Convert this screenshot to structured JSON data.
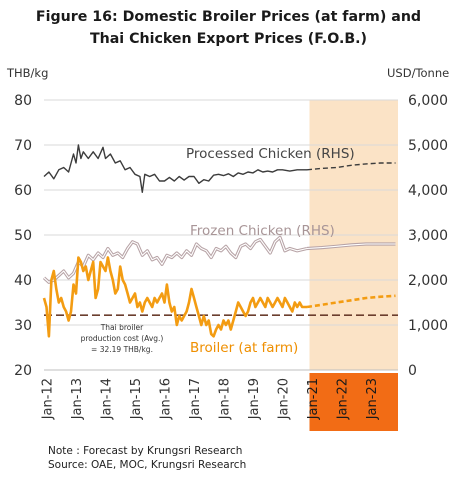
{
  "chart_data": {
    "type": "line",
    "title_line1": "Figure 16: Domestic Broiler Prices (at farm) and",
    "title_line2": "Thai Chicken Export Prices (F.O.B.)",
    "left_unit": "THB/kg",
    "right_unit": "USD/Tonne",
    "left_ylim": [
      20,
      80
    ],
    "left_ticks": [
      "80",
      "70",
      "60",
      "50",
      "40",
      "30",
      "20"
    ],
    "right_ylim": [
      0,
      6000
    ],
    "right_ticks": [
      "6,000",
      "5,000",
      "4,000",
      "3,000",
      "2,000",
      "1,000",
      "0"
    ],
    "x_labels": [
      "Jan-12",
      "Jan-13",
      "Jan-14",
      "Jan-15",
      "Jan-16",
      "Jan-17",
      "Jan-18",
      "Jan-19",
      "Jan-20",
      "Jan-21",
      "Jan-22",
      "Jan-23"
    ],
    "forecast_labels_highlighted": [
      "Jan-21",
      "Jan-22",
      "Jan-23"
    ],
    "forecast_start": "Jan-21",
    "grid": true,
    "colors": {
      "processed": "#3c3c3c",
      "frozen": "#b7a3a6",
      "broiler": "#f39c12",
      "cost_line": "#6b3e2e",
      "forecast_band": "#fbe3c6",
      "forecast_axis": "#f26c15",
      "processed_label": "#444444",
      "frozen_label": "#a89597",
      "broiler_label": "#ef8f00"
    },
    "annotations": {
      "processed": "Processed Chicken (RHS)",
      "frozen": "Frozen Chicken (RHS)",
      "broiler": "Broiler (at farm)",
      "cost_line1": "Thai broiler",
      "cost_line2": "production cost (Avg.)",
      "cost_line3": "= 32.19 THB/kg."
    },
    "production_cost_thb_kg": 32.19,
    "series": [
      {
        "key": "processed",
        "axis": "right",
        "style": "solid",
        "points": [
          [
            "2012-01",
            4300
          ],
          [
            "2012-03",
            4400
          ],
          [
            "2012-05",
            4250
          ],
          [
            "2012-07",
            4450
          ],
          [
            "2012-09",
            4500
          ],
          [
            "2012-11",
            4400
          ],
          [
            "2013-01",
            4800
          ],
          [
            "2013-02",
            4600
          ],
          [
            "2013-03",
            5000
          ],
          [
            "2013-04",
            4700
          ],
          [
            "2013-05",
            4850
          ],
          [
            "2013-07",
            4700
          ],
          [
            "2013-09",
            4850
          ],
          [
            "2013-11",
            4700
          ],
          [
            "2014-01",
            4950
          ],
          [
            "2014-02",
            4700
          ],
          [
            "2014-04",
            4800
          ],
          [
            "2014-06",
            4600
          ],
          [
            "2014-08",
            4650
          ],
          [
            "2014-10",
            4450
          ],
          [
            "2014-12",
            4500
          ],
          [
            "2015-02",
            4350
          ],
          [
            "2015-04",
            4300
          ],
          [
            "2015-05",
            3950
          ],
          [
            "2015-06",
            4350
          ],
          [
            "2015-08",
            4300
          ],
          [
            "2015-10",
            4350
          ],
          [
            "2015-12",
            4200
          ],
          [
            "2016-02",
            4200
          ],
          [
            "2016-04",
            4280
          ],
          [
            "2016-06",
            4200
          ],
          [
            "2016-08",
            4300
          ],
          [
            "2016-10",
            4220
          ],
          [
            "2016-12",
            4300
          ],
          [
            "2017-02",
            4300
          ],
          [
            "2017-04",
            4150
          ],
          [
            "2017-06",
            4230
          ],
          [
            "2017-08",
            4200
          ],
          [
            "2017-10",
            4330
          ],
          [
            "2017-12",
            4350
          ],
          [
            "2018-02",
            4320
          ],
          [
            "2018-04",
            4360
          ],
          [
            "2018-06",
            4300
          ],
          [
            "2018-08",
            4380
          ],
          [
            "2018-10",
            4350
          ],
          [
            "2018-12",
            4400
          ],
          [
            "2019-02",
            4380
          ],
          [
            "2019-04",
            4450
          ],
          [
            "2019-06",
            4400
          ],
          [
            "2019-08",
            4420
          ],
          [
            "2019-10",
            4400
          ],
          [
            "2019-12",
            4450
          ],
          [
            "2020-02",
            4450
          ],
          [
            "2020-05",
            4420
          ],
          [
            "2020-08",
            4450
          ],
          [
            "2020-12",
            4450
          ]
        ]
      },
      {
        "key": "processed_forecast",
        "axis": "right",
        "style": "dashed",
        "points": [
          [
            "2020-12",
            4450
          ],
          [
            "2021-06",
            4480
          ],
          [
            "2021-12",
            4500
          ],
          [
            "2022-06",
            4550
          ],
          [
            "2022-12",
            4580
          ],
          [
            "2023-06",
            4600
          ],
          [
            "2023-12",
            4600
          ]
        ]
      },
      {
        "key": "frozen",
        "axis": "right",
        "style": "double",
        "points": [
          [
            "2012-01",
            2050
          ],
          [
            "2012-03",
            1950
          ],
          [
            "2012-05",
            2000
          ],
          [
            "2012-07",
            2100
          ],
          [
            "2012-09",
            2200
          ],
          [
            "2012-11",
            2050
          ],
          [
            "2013-01",
            2150
          ],
          [
            "2013-03",
            2400
          ],
          [
            "2013-05",
            2300
          ],
          [
            "2013-07",
            2550
          ],
          [
            "2013-09",
            2450
          ],
          [
            "2013-11",
            2600
          ],
          [
            "2014-01",
            2500
          ],
          [
            "2014-03",
            2700
          ],
          [
            "2014-05",
            2550
          ],
          [
            "2014-07",
            2600
          ],
          [
            "2014-09",
            2500
          ],
          [
            "2014-11",
            2700
          ],
          [
            "2015-01",
            2850
          ],
          [
            "2015-03",
            2800
          ],
          [
            "2015-05",
            2550
          ],
          [
            "2015-07",
            2650
          ],
          [
            "2015-09",
            2450
          ],
          [
            "2015-11",
            2500
          ],
          [
            "2016-01",
            2350
          ],
          [
            "2016-03",
            2550
          ],
          [
            "2016-05",
            2500
          ],
          [
            "2016-07",
            2600
          ],
          [
            "2016-09",
            2500
          ],
          [
            "2016-11",
            2650
          ],
          [
            "2017-01",
            2550
          ],
          [
            "2017-03",
            2800
          ],
          [
            "2017-05",
            2700
          ],
          [
            "2017-07",
            2650
          ],
          [
            "2017-09",
            2500
          ],
          [
            "2017-11",
            2700
          ],
          [
            "2018-01",
            2650
          ],
          [
            "2018-03",
            2750
          ],
          [
            "2018-05",
            2600
          ],
          [
            "2018-07",
            2500
          ],
          [
            "2018-09",
            2750
          ],
          [
            "2018-11",
            2800
          ],
          [
            "2019-01",
            2700
          ],
          [
            "2019-03",
            2850
          ],
          [
            "2019-05",
            2900
          ],
          [
            "2019-07",
            2750
          ],
          [
            "2019-09",
            2600
          ],
          [
            "2019-11",
            2850
          ],
          [
            "2020-01",
            2950
          ],
          [
            "2020-03",
            2650
          ],
          [
            "2020-05",
            2700
          ],
          [
            "2020-08",
            2650
          ],
          [
            "2020-12",
            2700
          ]
        ]
      },
      {
        "key": "frozen_forecast",
        "axis": "right",
        "style": "double",
        "points": [
          [
            "2020-12",
            2700
          ],
          [
            "2021-06",
            2720
          ],
          [
            "2021-12",
            2750
          ],
          [
            "2022-06",
            2780
          ],
          [
            "2022-12",
            2800
          ],
          [
            "2023-06",
            2800
          ],
          [
            "2023-12",
            2800
          ]
        ]
      },
      {
        "key": "broiler",
        "axis": "left",
        "style": "solid",
        "points": [
          [
            "2012-01",
            36
          ],
          [
            "2012-02",
            34
          ],
          [
            "2012-03",
            27.5
          ],
          [
            "2012-04",
            40
          ],
          [
            "2012-05",
            42
          ],
          [
            "2012-06",
            38
          ],
          [
            "2012-07",
            35
          ],
          [
            "2012-08",
            36
          ],
          [
            "2012-09",
            34
          ],
          [
            "2012-10",
            33
          ],
          [
            "2012-11",
            31
          ],
          [
            "2012-12",
            33
          ],
          [
            "2013-01",
            39
          ],
          [
            "2013-02",
            37
          ],
          [
            "2013-03",
            45
          ],
          [
            "2013-04",
            44
          ],
          [
            "2013-05",
            42
          ],
          [
            "2013-06",
            43
          ],
          [
            "2013-07",
            40
          ],
          [
            "2013-08",
            42
          ],
          [
            "2013-09",
            44
          ],
          [
            "2013-10",
            36
          ],
          [
            "2013-11",
            38
          ],
          [
            "2013-12",
            44
          ],
          [
            "2014-01",
            43
          ],
          [
            "2014-02",
            42
          ],
          [
            "2014-03",
            45
          ],
          [
            "2014-04",
            42
          ],
          [
            "2014-05",
            40
          ],
          [
            "2014-06",
            37
          ],
          [
            "2014-07",
            38
          ],
          [
            "2014-08",
            43
          ],
          [
            "2014-09",
            40
          ],
          [
            "2014-10",
            39
          ],
          [
            "2014-11",
            37
          ],
          [
            "2014-12",
            35
          ],
          [
            "2015-01",
            36
          ],
          [
            "2015-02",
            37
          ],
          [
            "2015-03",
            34
          ],
          [
            "2015-04",
            35
          ],
          [
            "2015-05",
            33
          ],
          [
            "2015-06",
            35
          ],
          [
            "2015-07",
            36
          ],
          [
            "2015-08",
            35
          ],
          [
            "2015-09",
            34
          ],
          [
            "2015-10",
            36
          ],
          [
            "2015-11",
            35
          ],
          [
            "2015-12",
            36
          ],
          [
            "2016-01",
            37
          ],
          [
            "2016-02",
            35
          ],
          [
            "2016-03",
            39
          ],
          [
            "2016-04",
            35
          ],
          [
            "2016-05",
            33
          ],
          [
            "2016-06",
            34
          ],
          [
            "2016-07",
            30
          ],
          [
            "2016-08",
            32
          ],
          [
            "2016-09",
            31
          ],
          [
            "2016-10",
            32
          ],
          [
            "2016-11",
            33
          ],
          [
            "2016-12",
            35
          ],
          [
            "2017-01",
            38
          ],
          [
            "2017-02",
            36
          ],
          [
            "2017-03",
            34
          ],
          [
            "2017-04",
            32
          ],
          [
            "2017-05",
            30
          ],
          [
            "2017-06",
            32
          ],
          [
            "2017-07",
            30
          ],
          [
            "2017-08",
            31
          ],
          [
            "2017-09",
            28
          ],
          [
            "2017-10",
            27.5
          ],
          [
            "2017-11",
            29
          ],
          [
            "2017-12",
            30
          ],
          [
            "2018-01",
            29
          ],
          [
            "2018-02",
            31
          ],
          [
            "2018-03",
            30
          ],
          [
            "2018-04",
            31
          ],
          [
            "2018-05",
            29
          ],
          [
            "2018-06",
            31
          ],
          [
            "2018-07",
            33
          ],
          [
            "2018-08",
            35
          ],
          [
            "2018-09",
            34
          ],
          [
            "2018-10",
            33
          ],
          [
            "2018-11",
            32
          ],
          [
            "2018-12",
            33
          ],
          [
            "2019-01",
            35
          ],
          [
            "2019-02",
            36
          ],
          [
            "2019-03",
            34
          ],
          [
            "2019-04",
            35
          ],
          [
            "2019-05",
            36
          ],
          [
            "2019-06",
            35
          ],
          [
            "2019-07",
            34
          ],
          [
            "2019-08",
            36
          ],
          [
            "2019-09",
            35
          ],
          [
            "2019-10",
            34
          ],
          [
            "2019-11",
            35
          ],
          [
            "2019-12",
            36
          ],
          [
            "2020-01",
            35
          ],
          [
            "2020-02",
            34
          ],
          [
            "2020-03",
            36
          ],
          [
            "2020-04",
            35
          ],
          [
            "2020-05",
            34
          ],
          [
            "2020-06",
            33
          ],
          [
            "2020-07",
            35
          ],
          [
            "2020-08",
            34
          ],
          [
            "2020-09",
            35
          ],
          [
            "2020-10",
            34
          ],
          [
            "2020-11",
            34
          ],
          [
            "2020-12",
            34
          ]
        ]
      },
      {
        "key": "broiler_forecast",
        "axis": "left",
        "style": "dashed",
        "points": [
          [
            "2020-12",
            34
          ],
          [
            "2021-06",
            34.5
          ],
          [
            "2021-12",
            35
          ],
          [
            "2022-06",
            35.5
          ],
          [
            "2022-12",
            36
          ],
          [
            "2023-06",
            36.3
          ],
          [
            "2023-12",
            36.5
          ]
        ]
      }
    ]
  },
  "notes": {
    "line1": "Note : Forecast by Krungsri Research",
    "line2": "Source: OAE, MOC, Krungsri Research"
  }
}
